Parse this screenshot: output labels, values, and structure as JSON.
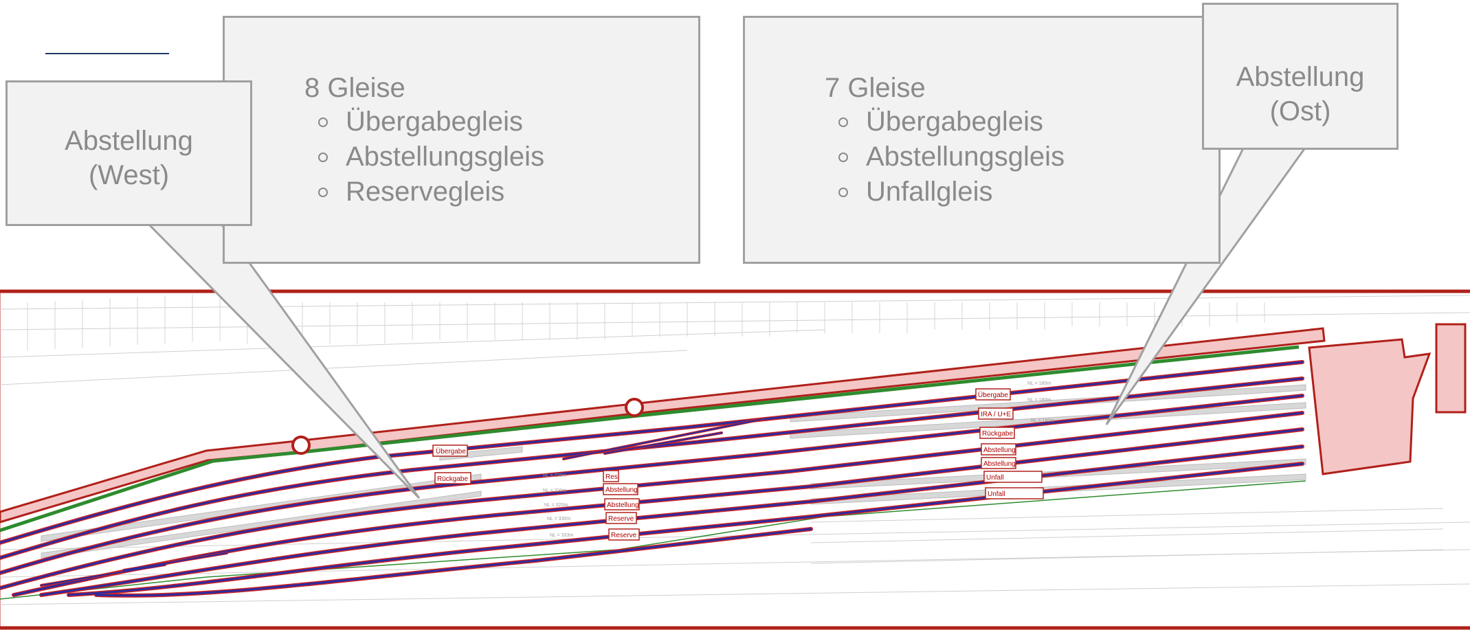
{
  "west_info": {
    "title": "8 Gleise",
    "items": [
      "Übergabegleis",
      "Abstellungsgleis",
      "Reservegleis"
    ]
  },
  "east_info": {
    "title": "7 Gleise",
    "items": [
      "Übergabegleis",
      "Abstellungsgleis",
      "Unfallgleis"
    ]
  },
  "callouts": {
    "west": "Abstellung\n(West)",
    "east": "Abstellung (Ost)"
  },
  "plan_labels": {
    "west": [
      "Übergabe",
      "Rückgabe",
      "Res",
      "Abstellung",
      "Abstellung",
      "Reserve",
      "Reserve"
    ],
    "west_lengths": [
      "NL = 220m",
      "NL = 320m",
      "NL = 320m",
      "NL = 330m",
      "NL = 333m"
    ],
    "east": [
      "Übergabe",
      "IRA / U+E",
      "Rückgabe",
      "Abstellung",
      "Abstellung",
      "Unfall",
      "Unfall"
    ],
    "east_lengths": [
      "NL = 180m",
      "NL = 180m",
      "NL = 180m"
    ]
  },
  "colors": {
    "frame": "#b0201a",
    "track": "#2b2ba0",
    "track_edge": "#cc2222",
    "green_line": "#2e8b2e",
    "highlight_fill": "#f4c6c6",
    "box_fill": "#f2f2f2",
    "box_border": "#a0a0a0",
    "text": "#8a8a8a"
  }
}
